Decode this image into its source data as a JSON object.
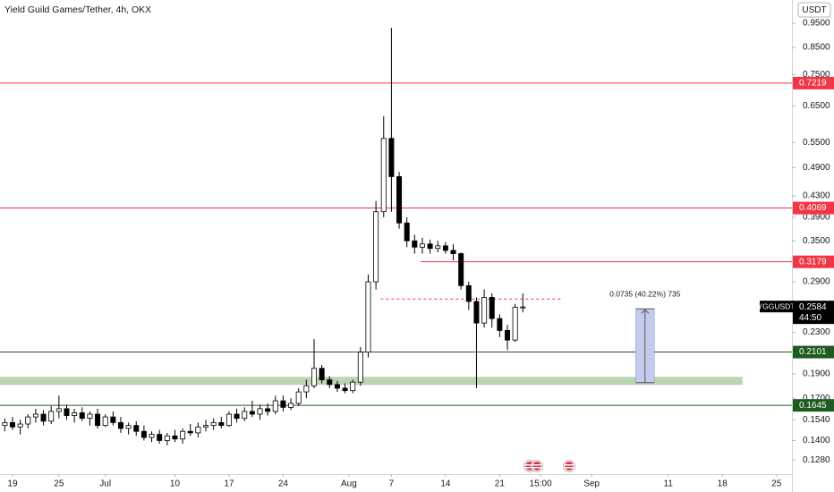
{
  "chart_data": {
    "type": "candlestick",
    "title": "Yield Guild Games/Tether, 4h, OKX",
    "currency": "USDT",
    "log_scale": true,
    "grid": false,
    "up_color": "#ffffff",
    "down_color": "#000000",
    "wick_color": "#000000",
    "xlim": [
      -1.62,
      100.8
    ],
    "ylim": [
      0.12,
      1.057
    ],
    "xticks": [
      {
        "value": 0,
        "label": "19"
      },
      {
        "value": 6,
        "label": "25"
      },
      {
        "value": 12,
        "label": "Jul"
      },
      {
        "value": 21,
        "label": "10"
      },
      {
        "value": 28,
        "label": "17"
      },
      {
        "value": 35,
        "label": "24"
      },
      {
        "value": 43.5,
        "label": "Aug"
      },
      {
        "value": 49,
        "label": "7"
      },
      {
        "value": 56,
        "label": "14"
      },
      {
        "value": 63,
        "label": "21"
      },
      {
        "value": 68.3,
        "label": "15:00"
      },
      {
        "value": 74.9,
        "label": "Sep"
      },
      {
        "value": 84.8,
        "label": "11"
      },
      {
        "value": 91.8,
        "label": "18"
      },
      {
        "value": 98.8,
        "label": "25"
      }
    ],
    "yticks": [
      {
        "value": 0.95,
        "label": "0.9500"
      },
      {
        "value": 0.85,
        "label": "0.8500"
      },
      {
        "value": 0.75,
        "label": "0.7500"
      },
      {
        "value": 0.65,
        "label": "0.6500"
      },
      {
        "value": 0.55,
        "label": "0.5500"
      },
      {
        "value": 0.49,
        "label": "0.4900"
      },
      {
        "value": 0.43,
        "label": "0.4300"
      },
      {
        "value": 0.39,
        "label": "0.3900"
      },
      {
        "value": 0.35,
        "label": "0.3500"
      },
      {
        "value": 0.29,
        "label": "0.2900"
      },
      {
        "value": 0.23,
        "label": "0.2300"
      },
      {
        "value": 0.19,
        "label": "0.1900"
      },
      {
        "value": 0.17,
        "label": "0.1700"
      },
      {
        "value": 0.154,
        "label": "0.1540"
      },
      {
        "value": 0.14,
        "label": "0.1400"
      },
      {
        "value": 0.128,
        "label": "0.1280"
      }
    ],
    "x": [
      -1,
      0,
      1,
      2,
      3,
      4,
      5,
      6,
      7,
      8,
      9,
      10,
      11,
      12,
      13,
      14,
      15,
      16,
      17,
      18,
      19,
      20,
      21,
      22,
      23,
      24,
      25,
      26,
      27,
      28,
      29,
      30,
      31,
      32,
      33,
      34,
      35,
      36,
      37,
      38,
      39,
      40,
      41,
      42,
      43,
      44,
      45,
      46,
      47,
      48,
      49,
      50,
      51,
      52,
      53,
      54,
      55,
      56,
      57,
      58,
      59,
      60,
      61,
      62,
      63,
      64,
      65,
      66
    ],
    "open": [
      0.15,
      0.152,
      0.149,
      0.151,
      0.156,
      0.158,
      0.153,
      0.16,
      0.162,
      0.157,
      0.159,
      0.155,
      0.158,
      0.15,
      0.156,
      0.152,
      0.148,
      0.15,
      0.146,
      0.142,
      0.144,
      0.14,
      0.143,
      0.141,
      0.146,
      0.145,
      0.149,
      0.15,
      0.152,
      0.15,
      0.158,
      0.155,
      0.16,
      0.158,
      0.162,
      0.16,
      0.168,
      0.163,
      0.166,
      0.175,
      0.18,
      0.195,
      0.185,
      0.181,
      0.178,
      0.176,
      0.183,
      0.21,
      0.29,
      0.4,
      0.56,
      0.47,
      0.38,
      0.35,
      0.34,
      0.345,
      0.338,
      0.342,
      0.335,
      0.33,
      0.285,
      0.265,
      0.24,
      0.27,
      0.245,
      0.232,
      0.222,
      0.258
    ],
    "high": [
      0.155,
      0.156,
      0.154,
      0.158,
      0.162,
      0.161,
      0.164,
      0.172,
      0.165,
      0.162,
      0.163,
      0.16,
      0.162,
      0.158,
      0.16,
      0.156,
      0.152,
      0.153,
      0.15,
      0.146,
      0.147,
      0.145,
      0.147,
      0.148,
      0.151,
      0.152,
      0.154,
      0.155,
      0.156,
      0.16,
      0.162,
      0.163,
      0.168,
      0.165,
      0.166,
      0.172,
      0.172,
      0.17,
      0.178,
      0.185,
      0.223,
      0.198,
      0.188,
      0.184,
      0.182,
      0.185,
      0.215,
      0.3,
      0.42,
      0.62,
      0.93,
      0.48,
      0.39,
      0.36,
      0.355,
      0.352,
      0.35,
      0.348,
      0.345,
      0.332,
      0.29,
      0.27,
      0.28,
      0.275,
      0.25,
      0.238,
      0.262,
      0.275
    ],
    "low": [
      0.146,
      0.147,
      0.144,
      0.148,
      0.152,
      0.15,
      0.151,
      0.155,
      0.154,
      0.152,
      0.153,
      0.15,
      0.148,
      0.149,
      0.15,
      0.145,
      0.144,
      0.143,
      0.14,
      0.139,
      0.138,
      0.137,
      0.139,
      0.138,
      0.143,
      0.142,
      0.146,
      0.147,
      0.148,
      0.149,
      0.152,
      0.153,
      0.156,
      0.154,
      0.157,
      0.158,
      0.16,
      0.161,
      0.164,
      0.17,
      0.178,
      0.182,
      0.178,
      0.175,
      0.174,
      0.174,
      0.18,
      0.205,
      0.28,
      0.39,
      0.4,
      0.37,
      0.34,
      0.33,
      0.33,
      0.33,
      0.332,
      0.33,
      0.32,
      0.28,
      0.255,
      0.178,
      0.235,
      0.235,
      0.225,
      0.212,
      0.22,
      0.252
    ],
    "close": [
      0.152,
      0.149,
      0.151,
      0.156,
      0.158,
      0.153,
      0.16,
      0.162,
      0.157,
      0.159,
      0.155,
      0.158,
      0.15,
      0.156,
      0.152,
      0.148,
      0.15,
      0.146,
      0.142,
      0.144,
      0.14,
      0.143,
      0.141,
      0.146,
      0.145,
      0.149,
      0.15,
      0.152,
      0.15,
      0.158,
      0.155,
      0.16,
      0.158,
      0.162,
      0.16,
      0.168,
      0.163,
      0.166,
      0.175,
      0.18,
      0.195,
      0.185,
      0.181,
      0.178,
      0.176,
      0.183,
      0.21,
      0.29,
      0.4,
      0.56,
      0.47,
      0.38,
      0.35,
      0.34,
      0.345,
      0.338,
      0.342,
      0.335,
      0.33,
      0.285,
      0.265,
      0.24,
      0.27,
      0.245,
      0.232,
      0.222,
      0.258,
      0.2584
    ],
    "levels": [
      {
        "value": 0.7219,
        "label": "0.7219",
        "color": "#f23645"
      },
      {
        "value": 0.4069,
        "label": "0.4069",
        "color": "#f23645"
      },
      {
        "value": 0.3179,
        "label": "0.3179",
        "color": "#f23645",
        "start": 52.8
      },
      {
        "value": 0.2101,
        "label": "0.2101",
        "color": "#1e5b1e"
      },
      {
        "value": 0.1645,
        "label": "0.1645",
        "color": "#1e5b1e"
      }
    ],
    "dashed_line": {
      "value": 0.268,
      "x": [
        47.6,
        71.1
      ],
      "color": "#f23645"
    },
    "zone": {
      "from": 0.1807,
      "to": 0.1875,
      "x": [
        -1.62,
        94.4
      ],
      "color": "#b9d5b1"
    },
    "measure": {
      "label": "0.0735 (40.22%) 735",
      "from": 0.1826,
      "to": 0.2562,
      "x": [
        80.6,
        83.0
      ],
      "color": "#c5cbef"
    },
    "last_price": {
      "symbol": "YGGUSDT",
      "value": 0.2584,
      "label": "0.2584",
      "countdown": "44:50"
    }
  }
}
